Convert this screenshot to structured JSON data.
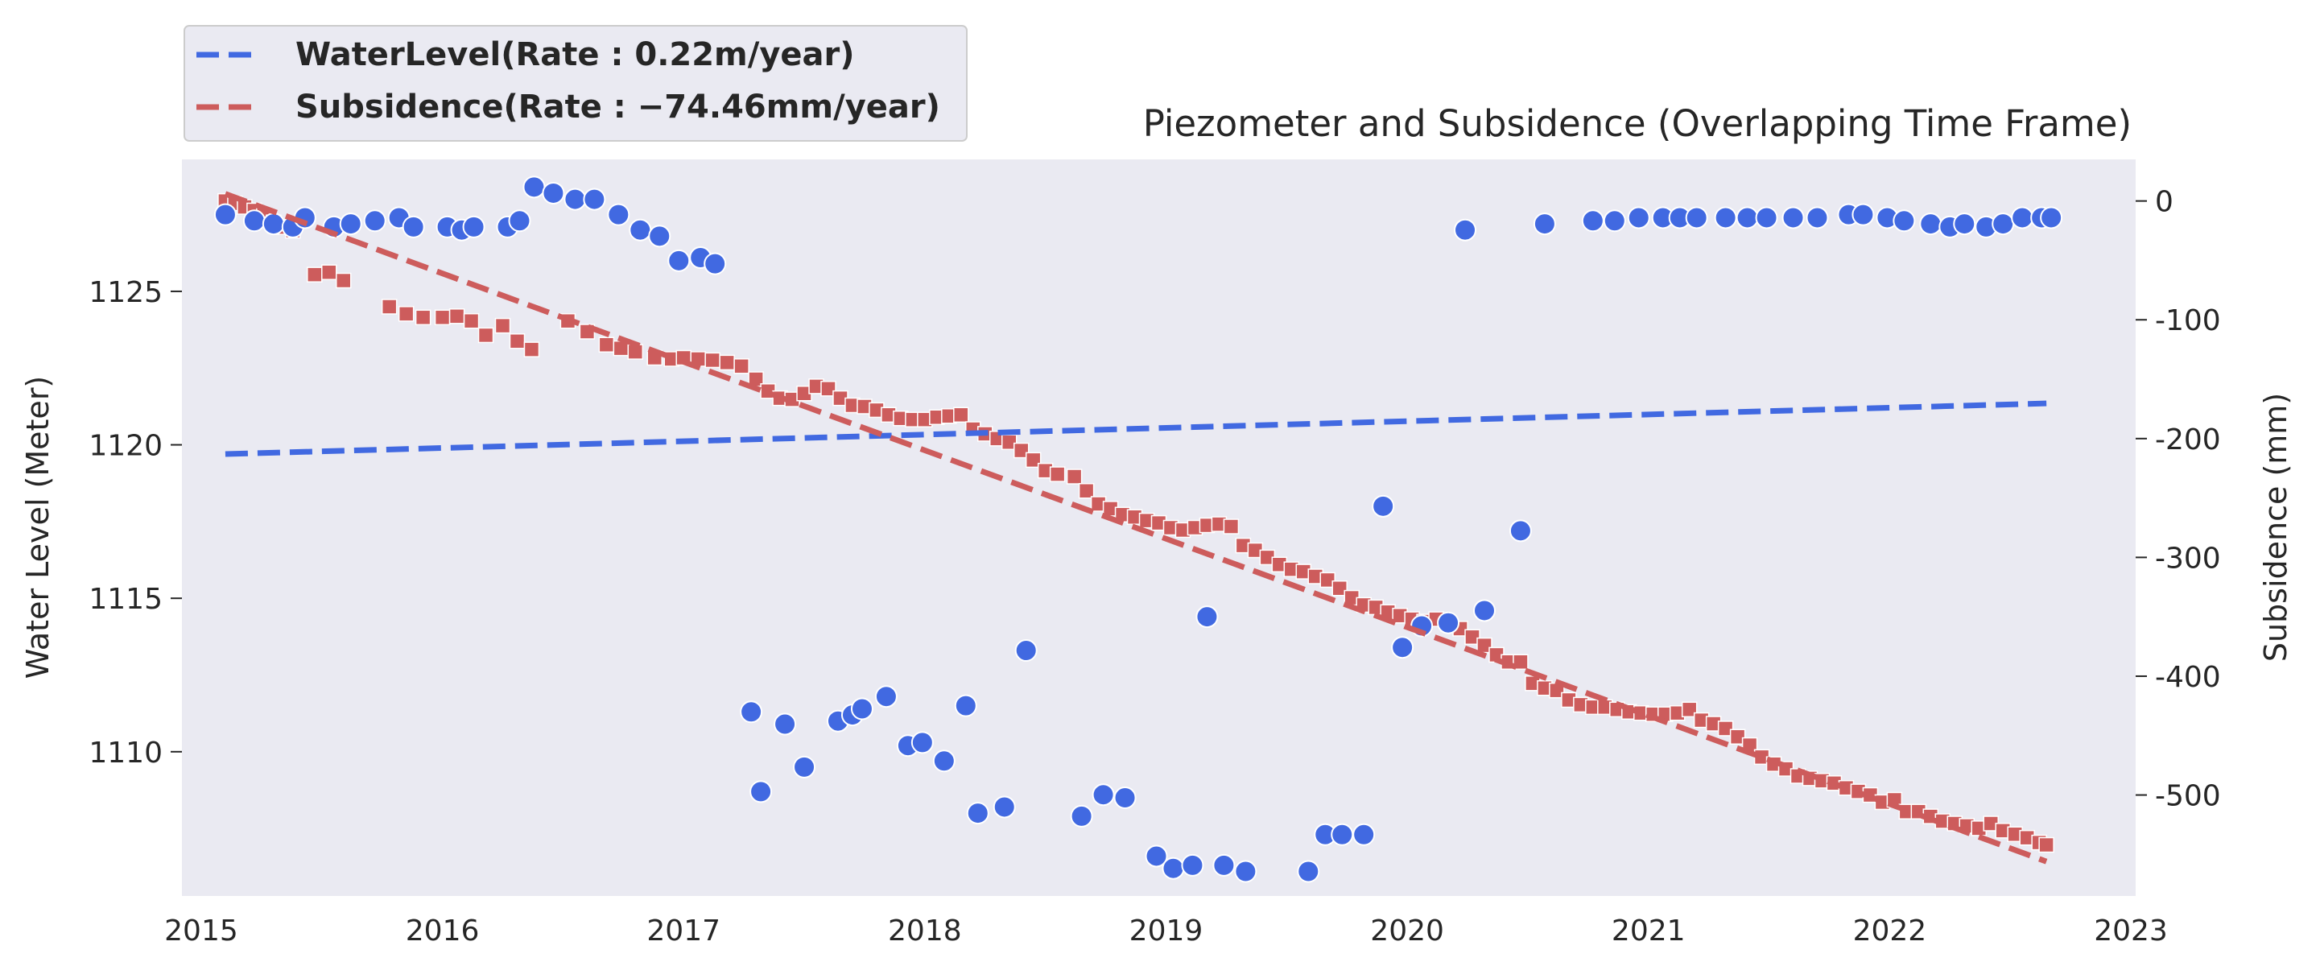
{
  "chart_data": {
    "type": "scatter",
    "title": "Piezometer and Subsidence (Overlapping Time Frame)",
    "ylabel_left": "Water Level (Meter)",
    "ylabel_right": "Subsidence (mm)",
    "x_ticks": [
      "2015",
      "2016",
      "2017",
      "2018",
      "2019",
      "2020",
      "2021",
      "2022",
      "2023"
    ],
    "y_left_ticks": [
      "1110",
      "1115",
      "1120",
      "1125"
    ],
    "y_right_ticks": [
      "0",
      "-100",
      "-200",
      "-300",
      "-400",
      "-500"
    ],
    "xlim": [
      2014.92,
      2023.02
    ],
    "ylim_left": [
      1105.3,
      1129.3
    ],
    "ylim_right": [
      -585,
      35
    ],
    "grid": false,
    "legend_placement": "top-left, above plot",
    "colors": {
      "water": "#4169e1",
      "subsidence": "#cd5c5c",
      "background": "#eaeaf2"
    },
    "legend": {
      "water": "WaterLevel(Rate : 0.22m/year)",
      "subsidence": "Subsidence(Rate : −74.46mm/year)"
    },
    "trends": {
      "water": {
        "axis": "left",
        "x": [
          2015.1,
          2022.65
        ],
        "y": [
          1119.7,
          1121.35
        ]
      },
      "subsidence": {
        "axis": "right",
        "x": [
          2015.1,
          2022.65
        ],
        "y": [
          6,
          -556
        ]
      }
    },
    "series": [
      {
        "axis": "left",
        "marker": "circle",
        "points": [
          [
            2015.1,
            1127.5
          ],
          [
            2015.22,
            1127.3
          ],
          [
            2015.3,
            1127.2
          ],
          [
            2015.38,
            1127.1
          ],
          [
            2015.43,
            1127.4
          ],
          [
            2015.55,
            1127.1
          ],
          [
            2015.62,
            1127.2
          ],
          [
            2015.72,
            1127.3
          ],
          [
            2015.82,
            1127.4
          ],
          [
            2015.88,
            1127.1
          ],
          [
            2016.02,
            1127.1
          ],
          [
            2016.08,
            1127.0
          ],
          [
            2016.13,
            1127.1
          ],
          [
            2016.27,
            1127.1
          ],
          [
            2016.32,
            1127.3
          ],
          [
            2016.38,
            1128.4
          ],
          [
            2016.46,
            1128.2
          ],
          [
            2016.55,
            1128.0
          ],
          [
            2016.63,
            1128.0
          ],
          [
            2016.73,
            1127.5
          ],
          [
            2016.82,
            1127.0
          ],
          [
            2016.9,
            1126.8
          ],
          [
            2016.98,
            1126.0
          ],
          [
            2017.07,
            1126.1
          ],
          [
            2017.13,
            1125.9
          ],
          [
            2017.28,
            1111.3
          ],
          [
            2017.32,
            1108.7
          ],
          [
            2017.42,
            1110.9
          ],
          [
            2017.5,
            1109.5
          ],
          [
            2017.64,
            1111.0
          ],
          [
            2017.7,
            1111.2
          ],
          [
            2017.74,
            1111.4
          ],
          [
            2017.84,
            1111.8
          ],
          [
            2017.93,
            1110.2
          ],
          [
            2017.99,
            1110.3
          ],
          [
            2018.08,
            1109.7
          ],
          [
            2018.17,
            1111.5
          ],
          [
            2018.22,
            1108.0
          ],
          [
            2018.33,
            1108.2
          ],
          [
            2018.42,
            1113.3
          ],
          [
            2018.65,
            1107.9
          ],
          [
            2018.74,
            1108.6
          ],
          [
            2018.83,
            1108.5
          ],
          [
            2018.96,
            1106.6
          ],
          [
            2019.03,
            1106.2
          ],
          [
            2019.11,
            1106.3
          ],
          [
            2019.17,
            1114.4
          ],
          [
            2019.24,
            1106.3
          ],
          [
            2019.33,
            1106.1
          ],
          [
            2019.59,
            1106.1
          ],
          [
            2019.66,
            1107.3
          ],
          [
            2019.73,
            1107.3
          ],
          [
            2019.82,
            1107.3
          ],
          [
            2019.9,
            1118.0
          ],
          [
            2019.98,
            1113.4
          ],
          [
            2020.06,
            1114.1
          ],
          [
            2020.17,
            1114.2
          ],
          [
            2020.24,
            1127.0
          ],
          [
            2020.32,
            1114.6
          ],
          [
            2020.47,
            1117.2
          ],
          [
            2020.57,
            1127.2
          ],
          [
            2020.77,
            1127.3
          ],
          [
            2020.86,
            1127.3
          ],
          [
            2020.96,
            1127.4
          ],
          [
            2021.06,
            1127.4
          ],
          [
            2021.13,
            1127.4
          ],
          [
            2021.2,
            1127.4
          ],
          [
            2021.32,
            1127.4
          ],
          [
            2021.41,
            1127.4
          ],
          [
            2021.49,
            1127.4
          ],
          [
            2021.6,
            1127.4
          ],
          [
            2021.7,
            1127.4
          ],
          [
            2021.83,
            1127.5
          ],
          [
            2021.89,
            1127.5
          ],
          [
            2021.99,
            1127.4
          ],
          [
            2022.06,
            1127.3
          ],
          [
            2022.17,
            1127.2
          ],
          [
            2022.25,
            1127.1
          ],
          [
            2022.31,
            1127.2
          ],
          [
            2022.4,
            1127.1
          ],
          [
            2022.47,
            1127.2
          ],
          [
            2022.55,
            1127.4
          ],
          [
            2022.63,
            1127.4
          ],
          [
            2022.67,
            1127.4
          ]
        ]
      },
      {
        "axis": "right",
        "marker": "square",
        "points": [
          [
            2015.1,
            0
          ],
          [
            2015.14,
            -2
          ],
          [
            2015.18,
            -5
          ],
          [
            2015.22,
            -8
          ],
          [
            2015.26,
            -12
          ],
          [
            2015.3,
            -18
          ],
          [
            2015.34,
            -22
          ],
          [
            2015.38,
            -25
          ],
          [
            2015.47,
            -62
          ],
          [
            2015.53,
            -60
          ],
          [
            2015.59,
            -67
          ],
          [
            2015.78,
            -89
          ],
          [
            2015.85,
            -95
          ],
          [
            2015.92,
            -98
          ],
          [
            2016.0,
            -98
          ],
          [
            2016.06,
            -97
          ],
          [
            2016.12,
            -101
          ],
          [
            2016.18,
            -113
          ],
          [
            2016.25,
            -105
          ],
          [
            2016.31,
            -118
          ],
          [
            2016.37,
            -125
          ],
          [
            2016.52,
            -101
          ],
          [
            2016.6,
            -110
          ],
          [
            2016.68,
            -121
          ],
          [
            2016.74,
            -124
          ],
          [
            2016.8,
            -127
          ],
          [
            2016.88,
            -132
          ],
          [
            2016.95,
            -133
          ],
          [
            2017.0,
            -132
          ],
          [
            2017.06,
            -133
          ],
          [
            2017.12,
            -134
          ],
          [
            2017.18,
            -136
          ],
          [
            2017.24,
            -139
          ],
          [
            2017.3,
            -150
          ],
          [
            2017.35,
            -160
          ],
          [
            2017.4,
            -166
          ],
          [
            2017.45,
            -167
          ],
          [
            2017.5,
            -162
          ],
          [
            2017.55,
            -156
          ],
          [
            2017.6,
            -158
          ],
          [
            2017.65,
            -166
          ],
          [
            2017.7,
            -172
          ],
          [
            2017.75,
            -173
          ],
          [
            2017.8,
            -176
          ],
          [
            2017.85,
            -180
          ],
          [
            2017.9,
            -183
          ],
          [
            2017.95,
            -184
          ],
          [
            2018.0,
            -184
          ],
          [
            2018.05,
            -182
          ],
          [
            2018.1,
            -181
          ],
          [
            2018.15,
            -180
          ],
          [
            2018.2,
            -192
          ],
          [
            2018.25,
            -196
          ],
          [
            2018.3,
            -200
          ],
          [
            2018.35,
            -203
          ],
          [
            2018.4,
            -210
          ],
          [
            2018.45,
            -218
          ],
          [
            2018.5,
            -227
          ],
          [
            2018.55,
            -230
          ],
          [
            2018.62,
            -232
          ],
          [
            2018.67,
            -244
          ],
          [
            2018.72,
            -255
          ],
          [
            2018.77,
            -259
          ],
          [
            2018.82,
            -264
          ],
          [
            2018.87,
            -266
          ],
          [
            2018.92,
            -269
          ],
          [
            2018.97,
            -271
          ],
          [
            2019.02,
            -275
          ],
          [
            2019.07,
            -277
          ],
          [
            2019.12,
            -275
          ],
          [
            2019.17,
            -273
          ],
          [
            2019.22,
            -272
          ],
          [
            2019.27,
            -274
          ],
          [
            2019.32,
            -290
          ],
          [
            2019.37,
            -294
          ],
          [
            2019.42,
            -300
          ],
          [
            2019.47,
            -306
          ],
          [
            2019.52,
            -310
          ],
          [
            2019.57,
            -312
          ],
          [
            2019.62,
            -316
          ],
          [
            2019.67,
            -319
          ],
          [
            2019.72,
            -326
          ],
          [
            2019.77,
            -334
          ],
          [
            2019.82,
            -340
          ],
          [
            2019.87,
            -342
          ],
          [
            2019.92,
            -346
          ],
          [
            2019.97,
            -349
          ],
          [
            2020.02,
            -352
          ],
          [
            2020.07,
            -354
          ],
          [
            2020.12,
            -352
          ],
          [
            2020.17,
            -356
          ],
          [
            2020.22,
            -360
          ],
          [
            2020.27,
            -367
          ],
          [
            2020.32,
            -374
          ],
          [
            2020.37,
            -382
          ],
          [
            2020.42,
            -388
          ],
          [
            2020.47,
            -388
          ],
          [
            2020.52,
            -406
          ],
          [
            2020.57,
            -410
          ],
          [
            2020.62,
            -412
          ],
          [
            2020.67,
            -420
          ],
          [
            2020.72,
            -424
          ],
          [
            2020.77,
            -426
          ],
          [
            2020.82,
            -426
          ],
          [
            2020.87,
            -428
          ],
          [
            2020.92,
            -430
          ],
          [
            2020.97,
            -431
          ],
          [
            2021.02,
            -432
          ],
          [
            2021.07,
            -432
          ],
          [
            2021.12,
            -431
          ],
          [
            2021.17,
            -428
          ],
          [
            2021.22,
            -437
          ],
          [
            2021.27,
            -440
          ],
          [
            2021.32,
            -444
          ],
          [
            2021.37,
            -451
          ],
          [
            2021.42,
            -458
          ],
          [
            2021.47,
            -468
          ],
          [
            2021.52,
            -474
          ],
          [
            2021.57,
            -478
          ],
          [
            2021.62,
            -484
          ],
          [
            2021.67,
            -486
          ],
          [
            2021.72,
            -488
          ],
          [
            2021.77,
            -490
          ],
          [
            2021.82,
            -494
          ],
          [
            2021.87,
            -497
          ],
          [
            2021.92,
            -500
          ],
          [
            2021.97,
            -506
          ],
          [
            2022.02,
            -504
          ],
          [
            2022.07,
            -514
          ],
          [
            2022.12,
            -514
          ],
          [
            2022.17,
            -518
          ],
          [
            2022.22,
            -522
          ],
          [
            2022.27,
            -524
          ],
          [
            2022.32,
            -526
          ],
          [
            2022.37,
            -528
          ],
          [
            2022.42,
            -524
          ],
          [
            2022.47,
            -530
          ],
          [
            2022.52,
            -533
          ],
          [
            2022.57,
            -536
          ],
          [
            2022.62,
            -540
          ],
          [
            2022.65,
            -542
          ]
        ]
      }
    ]
  }
}
